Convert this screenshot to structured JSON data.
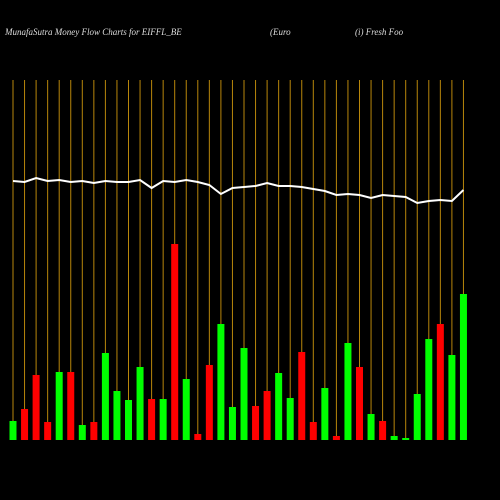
{
  "chart_data": {
    "type": "bar",
    "title": "MunafaSutra  Money Flow  Charts for EIFFL_BE",
    "subtitle": "(Euro",
    "subtitle2": "(i) Fresh Foo",
    "ylim": [
      0,
      360
    ],
    "values": [
      19,
      31,
      65,
      18,
      68,
      68,
      15,
      18,
      87,
      49,
      40,
      73,
      41,
      41,
      196,
      61,
      6,
      75,
      116,
      33,
      92,
      34,
      49,
      67,
      42,
      88,
      18,
      52,
      4,
      97,
      73,
      26,
      19,
      4,
      2,
      46,
      101,
      116,
      85,
      146
    ],
    "colors": [
      "lime",
      "red",
      "red",
      "red",
      "lime",
      "red",
      "lime",
      "red",
      "lime",
      "lime",
      "lime",
      "lime",
      "red",
      "lime",
      "red",
      "lime",
      "red",
      "red",
      "lime",
      "lime",
      "lime",
      "red",
      "red",
      "lime",
      "lime",
      "red",
      "red",
      "lime",
      "red",
      "lime",
      "red",
      "lime",
      "red",
      "lime",
      "lime",
      "lime",
      "lime",
      "red",
      "lime",
      "lime"
    ],
    "line_values": [
      259,
      258,
      262,
      259,
      260,
      258,
      259,
      257,
      259,
      258,
      258,
      260,
      252,
      259,
      258,
      260,
      258,
      255,
      246,
      252,
      253,
      254,
      257,
      254,
      254,
      253,
      251,
      249,
      245,
      246,
      245,
      242,
      245,
      244,
      243,
      237,
      239,
      240,
      239,
      250
    ],
    "line_color": "#ffffff",
    "grid_color": "#b8860b"
  }
}
